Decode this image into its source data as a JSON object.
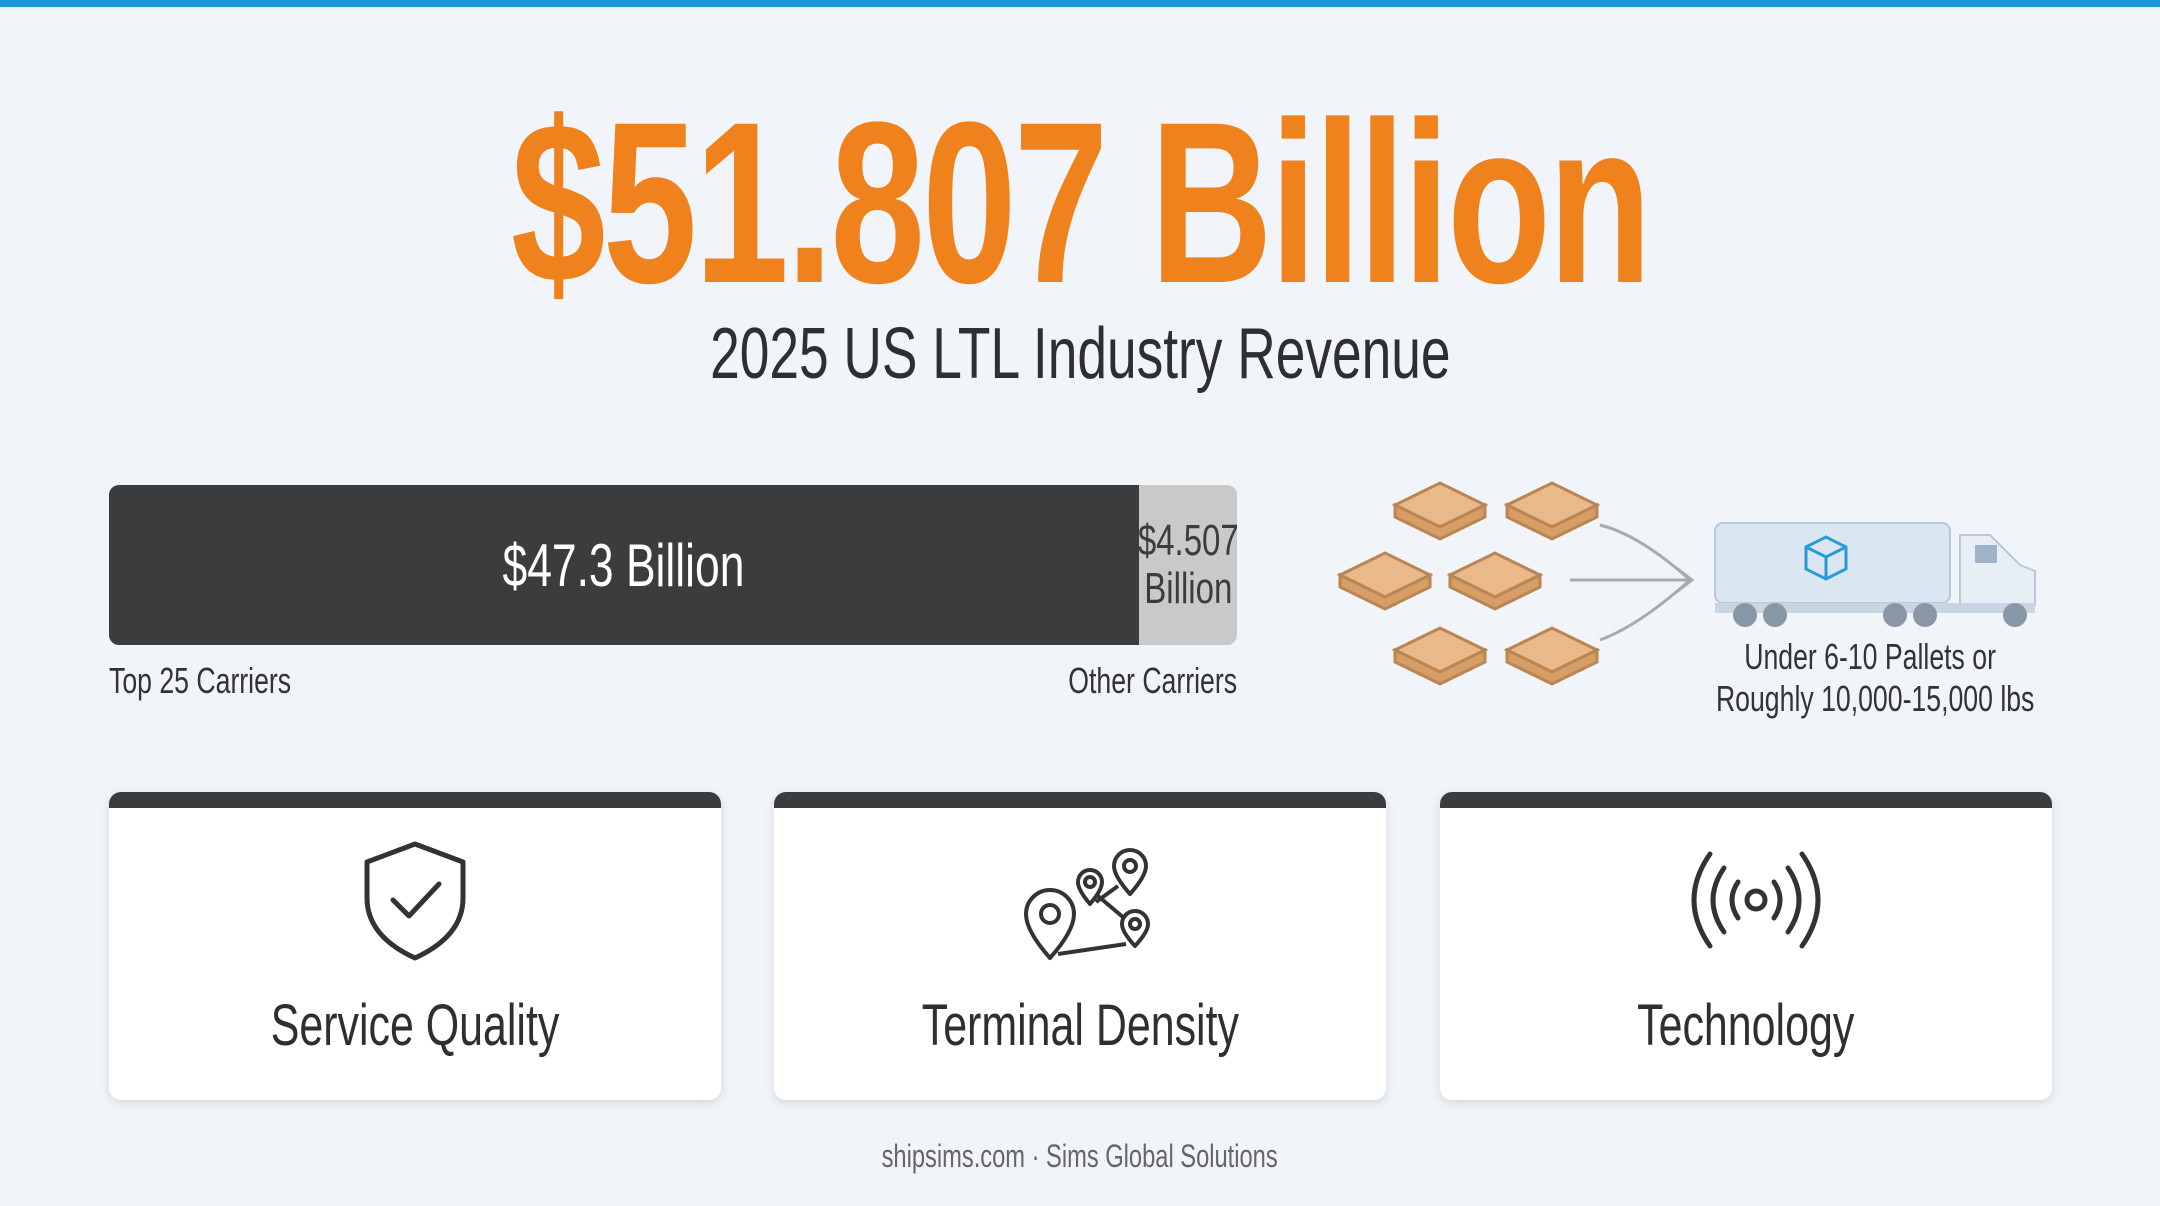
{
  "headline": {
    "amount": "$51.807 Billion",
    "subtitle": "2025 US LTL Industry Revenue"
  },
  "revenue_split": {
    "segments": [
      {
        "value": 47.3,
        "value_label": "$47.3 Billion",
        "label": "Top 25 Carriers",
        "color": "#3b3c3e"
      },
      {
        "value": 4.507,
        "value_label": "$4.507 Billion",
        "label": "Other Carriers",
        "color": "#c9c9c9"
      }
    ]
  },
  "shipment": {
    "caption_lines": [
      "Under 6-10 Pallets or",
      "Roughly 10,000-15,000 lbs"
    ]
  },
  "cards": [
    {
      "label": "Service Quality"
    },
    {
      "label": "Terminal Density"
    },
    {
      "label": "Technology"
    }
  ],
  "footer": "shipsims.com · Sims Global Solutions"
}
